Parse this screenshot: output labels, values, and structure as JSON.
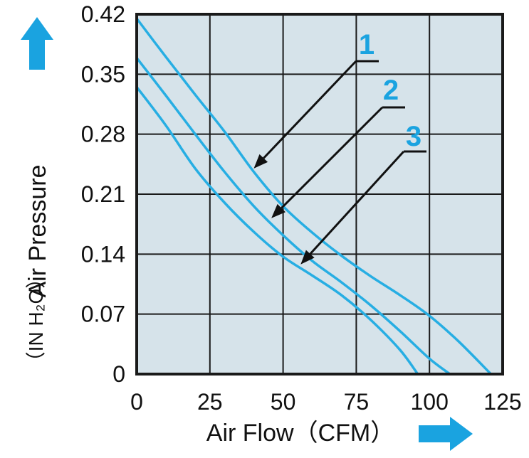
{
  "chart_data": {
    "type": "line",
    "xlim": [
      0,
      125
    ],
    "ylim": [
      0,
      0.42
    ],
    "x_ticks": [
      "0",
      "25",
      "50",
      "75",
      "100",
      "125"
    ],
    "y_ticks": [
      "0",
      "0.07",
      "0.14",
      "0.21",
      "0.28",
      "0.35",
      "0.42"
    ],
    "x_label": "Air Flow（CFM）",
    "y_label_main": "Air Pressure",
    "y_label_unit": "（IN H₂O）",
    "grid": true,
    "series": [
      {
        "name": "1",
        "x": [
          0,
          10,
          20,
          30,
          40,
          50,
          60,
          70,
          80,
          90,
          100,
          110,
          121
        ],
        "y": [
          0.415,
          0.37,
          0.326,
          0.283,
          0.236,
          0.196,
          0.165,
          0.138,
          0.114,
          0.092,
          0.068,
          0.038,
          0.0
        ]
      },
      {
        "name": "2",
        "x": [
          0,
          10,
          20,
          30,
          40,
          50,
          60,
          70,
          80,
          90,
          100,
          107
        ],
        "y": [
          0.369,
          0.325,
          0.28,
          0.236,
          0.196,
          0.162,
          0.132,
          0.107,
          0.08,
          0.05,
          0.018,
          0.0
        ]
      },
      {
        "name": "3",
        "x": [
          0,
          10,
          20,
          30,
          40,
          50,
          60,
          70,
          80,
          90,
          96
        ],
        "y": [
          0.335,
          0.29,
          0.24,
          0.2,
          0.166,
          0.137,
          0.115,
          0.092,
          0.063,
          0.028,
          0.0
        ]
      }
    ],
    "annotations": [
      {
        "label": "1",
        "points_to": [
          40,
          0.24
        ]
      },
      {
        "label": "2",
        "points_to": [
          46,
          0.182
        ]
      },
      {
        "label": "3",
        "points_to": [
          56,
          0.128
        ]
      }
    ]
  },
  "colors": {
    "plot_bg": "#d6e3ea",
    "curve": "#27aee3",
    "grid": "#1a1a1a",
    "arrow_icon": "#1aa3e0",
    "callout_text": "#1aa3e0"
  },
  "icons": {
    "y_arrow": "up-arrow-icon",
    "x_arrow": "right-arrow-icon"
  }
}
